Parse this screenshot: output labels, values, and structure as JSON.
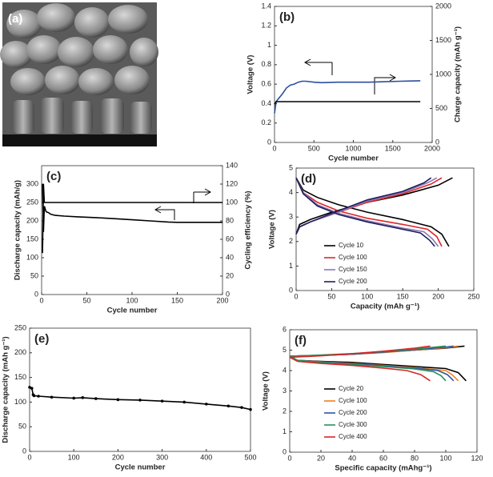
{
  "image_panel": {
    "label": "(a)"
  },
  "chart_data": [
    {
      "type": "line",
      "label": "(b)",
      "xlabel": "Cycle number",
      "ylabel": "Voltage (V)",
      "y2label": "Charge capacity  (mAh g⁻¹)",
      "xlim": [
        0,
        2000
      ],
      "xticks": [
        0,
        500,
        1000,
        1500,
        2000
      ],
      "ylim": [
        0,
        1.4
      ],
      "yticks": [
        0,
        0.2,
        0.4,
        0.6,
        0.8,
        1,
        1.2,
        1.4
      ],
      "y2lim": [
        0,
        2000
      ],
      "y2ticks": [
        0,
        500,
        1000,
        1500,
        2000
      ],
      "series": [
        {
          "color": "#2b4f9e",
          "axis": "y",
          "x": [
            0,
            20,
            50,
            100,
            150,
            200,
            250,
            300,
            350,
            400,
            500,
            600,
            800,
            1000,
            1200,
            1400,
            1600,
            1850
          ],
          "values": [
            0.3,
            0.42,
            0.45,
            0.5,
            0.56,
            0.59,
            0.6,
            0.62,
            0.63,
            0.63,
            0.62,
            0.615,
            0.62,
            0.62,
            0.62,
            0.625,
            0.63,
            0.635
          ]
        },
        {
          "color": "#000000",
          "axis": "y2",
          "x": [
            0,
            20,
            1850
          ],
          "values": [
            560,
            600,
            600
          ]
        }
      ]
    },
    {
      "type": "line",
      "label": "(c)",
      "xlabel": "Cycle number",
      "ylabel": "Discharge capacity (mAh/g)",
      "y2label": "Cycling efficiency (%)",
      "xlim": [
        0,
        200
      ],
      "xticks": [
        0,
        50,
        100,
        150,
        200
      ],
      "ylim": [
        0,
        350
      ],
      "yticks": [
        0,
        50,
        100,
        150,
        200,
        250,
        300
      ],
      "y2lim": [
        0,
        140
      ],
      "y2ticks": [
        0,
        20,
        40,
        60,
        80,
        100,
        120,
        140
      ],
      "series": [
        {
          "color": "#000000",
          "axis": "y",
          "x": [
            1,
            2,
            3,
            5,
            8,
            10,
            15,
            25,
            40,
            60,
            80,
            100,
            120,
            140,
            150,
            170,
            200
          ],
          "values": [
            300,
            170,
            240,
            225,
            222,
            218,
            215,
            213,
            211,
            209,
            206,
            203,
            200,
            197,
            196,
            196,
            196
          ]
        },
        {
          "color": "#000000",
          "axis": "y2",
          "x": [
            1,
            2,
            3,
            5,
            10,
            50,
            100,
            150,
            200
          ],
          "values": [
            45,
            120,
            100,
            100,
            100,
            100,
            100,
            100,
            100
          ]
        }
      ]
    },
    {
      "type": "line",
      "label": "(d)",
      "xlabel": "Capacity (mAh g⁻¹)",
      "ylabel": "Voltage (V)",
      "xlim": [
        0,
        250
      ],
      "xticks": [
        0,
        50,
        100,
        150,
        200,
        250
      ],
      "ylim": [
        0,
        5
      ],
      "yticks": [
        0,
        1,
        2,
        3,
        4,
        5
      ],
      "series": [
        {
          "name": "Cycle 10",
          "color": "#000000",
          "x": [
            0,
            5,
            20,
            50,
            100,
            150,
            200,
            220,
            null,
            0,
            10,
            30,
            60,
            100,
            150,
            190,
            205,
            215
          ],
          "values": [
            2.3,
            2.7,
            2.9,
            3.2,
            3.6,
            3.9,
            4.3,
            4.6,
            null,
            4.6,
            4.1,
            3.8,
            3.5,
            3.2,
            2.9,
            2.6,
            2.3,
            1.8
          ]
        },
        {
          "name": "Cycle 100",
          "color": "#e0262b",
          "x": [
            0,
            5,
            20,
            50,
            100,
            150,
            190,
            205,
            null,
            0,
            10,
            30,
            60,
            100,
            150,
            185,
            198,
            205
          ],
          "values": [
            2.3,
            2.6,
            2.8,
            3.1,
            3.6,
            3.95,
            4.35,
            4.6,
            null,
            4.6,
            4.0,
            3.6,
            3.25,
            2.95,
            2.7,
            2.5,
            2.2,
            1.8
          ]
        },
        {
          "name": "Cycle 150",
          "color": "#8a78b0",
          "x": [
            0,
            5,
            20,
            50,
            100,
            150,
            185,
            198,
            null,
            0,
            10,
            30,
            60,
            100,
            150,
            180,
            192,
            200
          ],
          "values": [
            2.3,
            2.6,
            2.8,
            3.1,
            3.65,
            4.0,
            4.4,
            4.6,
            null,
            4.6,
            4.0,
            3.5,
            3.15,
            2.85,
            2.55,
            2.4,
            2.1,
            1.8
          ]
        },
        {
          "name": "Cycle 200",
          "color": "#1c1f5e",
          "x": [
            0,
            5,
            20,
            50,
            100,
            150,
            180,
            190,
            null,
            0,
            10,
            30,
            60,
            100,
            150,
            175,
            188,
            195
          ],
          "values": [
            2.3,
            2.6,
            2.8,
            3.15,
            3.7,
            4.05,
            4.4,
            4.6,
            null,
            4.6,
            3.95,
            3.45,
            3.1,
            2.8,
            2.5,
            2.35,
            2.05,
            1.8
          ]
        }
      ]
    },
    {
      "type": "line",
      "label": "(e)",
      "xlabel": "Cycle number",
      "ylabel": "Discharge capacity (mAh g⁻¹)",
      "xlim": [
        0,
        500
      ],
      "xticks": [
        0,
        100,
        200,
        300,
        400,
        500
      ],
      "ylim": [
        0,
        250
      ],
      "yticks": [
        0,
        50,
        100,
        150,
        200,
        250
      ],
      "markers": true,
      "series": [
        {
          "color": "#000000",
          "x": [
            0,
            5,
            8,
            10,
            20,
            50,
            100,
            120,
            150,
            200,
            250,
            300,
            350,
            400,
            450,
            480,
            500
          ],
          "values": [
            130,
            128,
            115,
            113,
            112,
            110,
            108,
            109,
            107,
            105,
            104,
            102,
            100,
            96,
            92,
            89,
            85
          ]
        }
      ]
    },
    {
      "type": "line",
      "label": "(f)",
      "xlabel": "Specific capacity (mAhg⁻¹)",
      "ylabel": "Voltage (V)",
      "xlim": [
        0,
        120
      ],
      "xticks": [
        0,
        20,
        40,
        60,
        80,
        100,
        120
      ],
      "ylim": [
        0,
        6
      ],
      "yticks": [
        0,
        1,
        2,
        3,
        4,
        5,
        6
      ],
      "series": [
        {
          "name": "Cycle 20",
          "color": "#000000",
          "x": [
            0,
            20,
            40,
            60,
            80,
            100,
            112,
            null,
            0,
            5,
            20,
            40,
            60,
            80,
            100,
            108,
            113
          ],
          "values": [
            4.7,
            4.75,
            4.8,
            4.9,
            5.0,
            5.1,
            5.2,
            null,
            4.7,
            4.5,
            4.45,
            4.4,
            4.3,
            4.2,
            4.1,
            3.9,
            3.5
          ]
        },
        {
          "name": "Cycle 100",
          "color": "#f07f22",
          "x": [
            0,
            20,
            40,
            60,
            80,
            100,
            108,
            null,
            0,
            5,
            20,
            40,
            60,
            80,
            100,
            104,
            108
          ],
          "values": [
            4.7,
            4.74,
            4.8,
            4.88,
            5.0,
            5.12,
            5.2,
            null,
            4.7,
            4.5,
            4.43,
            4.35,
            4.25,
            4.15,
            4.0,
            3.8,
            3.5
          ]
        },
        {
          "name": "Cycle 200",
          "color": "#2f55a4",
          "x": [
            0,
            20,
            40,
            60,
            80,
            100,
            105,
            null,
            0,
            5,
            20,
            40,
            60,
            80,
            95,
            101,
            105
          ],
          "values": [
            4.7,
            4.74,
            4.8,
            4.9,
            5.02,
            5.15,
            5.2,
            null,
            4.7,
            4.5,
            4.42,
            4.33,
            4.23,
            4.12,
            4.0,
            3.8,
            3.5
          ]
        },
        {
          "name": "Cycle 300",
          "color": "#2b8f5b",
          "x": [
            0,
            20,
            40,
            60,
            80,
            100,
            null,
            0,
            5,
            20,
            40,
            60,
            80,
            92,
            97,
            100
          ],
          "values": [
            4.7,
            4.76,
            4.83,
            4.93,
            5.05,
            5.2,
            null,
            4.7,
            4.5,
            4.4,
            4.3,
            4.2,
            4.08,
            3.95,
            3.75,
            3.5
          ]
        },
        {
          "name": "Cycle 400",
          "color": "#d62728",
          "x": [
            0,
            20,
            40,
            60,
            80,
            90,
            null,
            0,
            5,
            20,
            40,
            60,
            75,
            84,
            90
          ],
          "values": [
            4.65,
            4.72,
            4.82,
            4.95,
            5.1,
            5.2,
            null,
            4.65,
            4.45,
            4.35,
            4.25,
            4.12,
            4.0,
            3.8,
            3.5
          ]
        }
      ]
    }
  ]
}
